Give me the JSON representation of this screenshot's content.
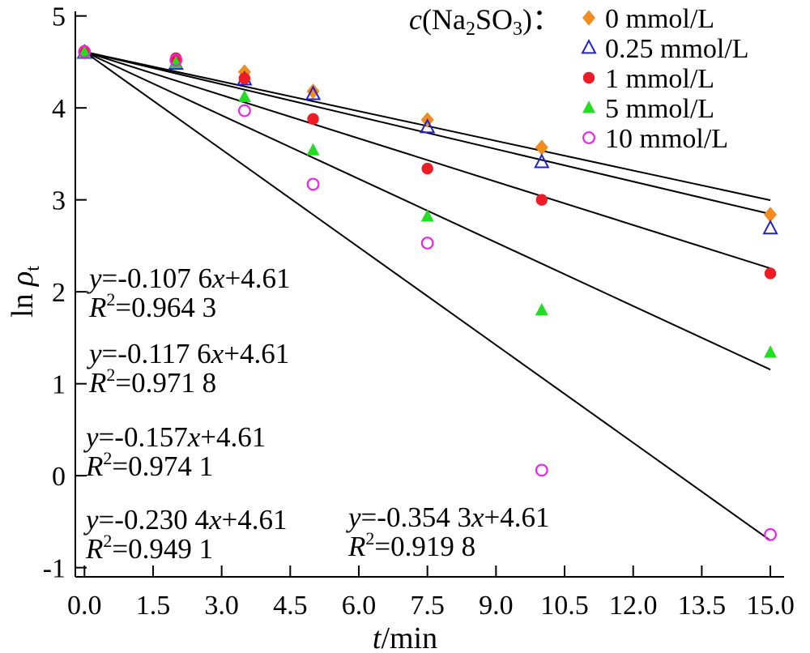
{
  "chart_data": {
    "type": "scatter",
    "xlabel_var": "t",
    "xlabel_unit": "/min",
    "ylabel_prefix": "ln ",
    "ylabel_var": "ρ",
    "ylabel_sub": "t",
    "xlim": [
      -0.2,
      15.3
    ],
    "ylim": [
      -1.1,
      5.05
    ],
    "xticks": [
      0,
      1.5,
      3,
      4.5,
      6,
      7.5,
      9,
      10.5,
      12,
      13.5,
      15
    ],
    "xtick_labels": [
      "0.0",
      "1.5",
      "3.0",
      "4.5",
      "6.0",
      "7.5",
      "9.0",
      "10.5",
      "12.0",
      "13.5",
      "15.0"
    ],
    "yticks": [
      -1,
      0,
      1,
      2,
      3,
      4,
      5
    ],
    "ytick_labels": [
      "-1",
      "0",
      "1",
      "2",
      "3",
      "4",
      "5"
    ],
    "legend_title_var": "c",
    "legend_title_rest_a": "(Na",
    "legend_title_sub1": "2",
    "legend_title_rest_b": "SO",
    "legend_title_sub2": "3",
    "legend_title_rest_c": ")：",
    "legend_position": "top-right",
    "x": [
      0,
      2,
      3.5,
      5,
      7.5,
      10,
      15
    ],
    "series": [
      {
        "name": "0 mmol/L",
        "marker": "diamond",
        "color": "#f28c1e",
        "values": [
          4.61,
          4.5,
          4.39,
          4.18,
          3.87,
          3.57,
          2.84
        ],
        "fit": {
          "slope": -0.1076,
          "intercept": 4.61
        }
      },
      {
        "name": "0.25 mmol/L",
        "marker": "triangle-open",
        "color": "#2222cc",
        "values": [
          4.6,
          4.48,
          4.31,
          4.15,
          3.79,
          3.41,
          2.69
        ],
        "fit": {
          "slope": -0.1176,
          "intercept": 4.61
        }
      },
      {
        "name": "1 mmol/L",
        "marker": "circle",
        "color": "#ee1c24",
        "values": [
          4.62,
          4.54,
          4.32,
          3.88,
          3.34,
          3.0,
          2.2
        ],
        "fit": {
          "slope": -0.157,
          "intercept": 4.61
        }
      },
      {
        "name": "5 mmol/L",
        "marker": "triangle",
        "color": "#22dd22",
        "values": [
          4.6,
          4.49,
          4.12,
          3.54,
          2.82,
          1.8,
          1.34
        ],
        "fit": {
          "slope": -0.2304,
          "intercept": 4.61
        }
      },
      {
        "name": "10 mmol/L",
        "marker": "circle-open",
        "color": "#ee22ee",
        "values": [
          4.61,
          4.52,
          3.97,
          3.17,
          2.53,
          0.06,
          -0.64
        ],
        "fit": {
          "slope": -0.3543,
          "intercept": 4.61
        }
      }
    ],
    "annotations": [
      {
        "eq_rest": "=-0.107 6",
        "eq_tail": "+4.61",
        "r2_val": "=0.964 3"
      },
      {
        "eq_rest": "=-0.117 6",
        "eq_tail": "+4.61",
        "r2_val": "=0.971 8"
      },
      {
        "eq_rest": "=-0.157",
        "eq_tail": "+4.61",
        "r2_val": "=0.974 1"
      },
      {
        "eq_rest": "=-0.230 4",
        "eq_tail": "+4.61",
        "r2_val": "=0.949 1"
      },
      {
        "eq_rest": "=-0.354 3",
        "eq_tail": "+4.61",
        "r2_val": "=0.919 8"
      }
    ]
  }
}
